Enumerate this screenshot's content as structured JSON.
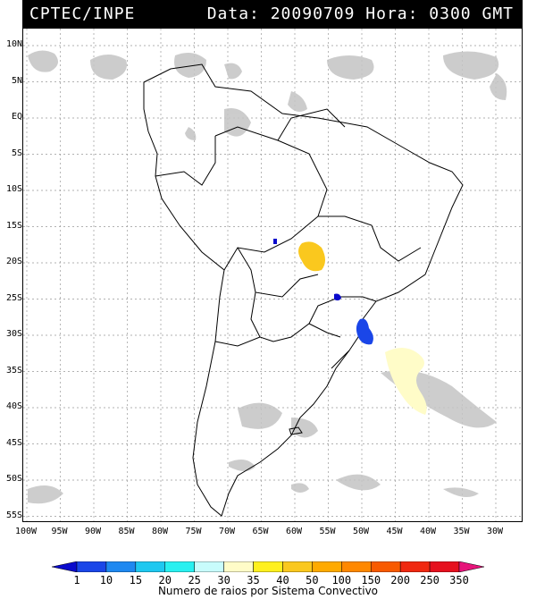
{
  "header": {
    "agency": "CPTEC/INPE",
    "date_label": "Data:",
    "date_value": "20090709",
    "hour_label": "Hora:",
    "hour_value": "0300 GMT"
  },
  "map": {
    "lat_labels": [
      "10N",
      "5N",
      "EQ",
      "5S",
      "10S",
      "15S",
      "20S",
      "25S",
      "30S",
      "35S",
      "40S",
      "45S",
      "50S",
      "55S"
    ],
    "lon_labels": [
      "100W",
      "95W",
      "90W",
      "85W",
      "80W",
      "75W",
      "70W",
      "65W",
      "60W",
      "55W",
      "50W",
      "45W",
      "40W",
      "35W",
      "30W"
    ]
  },
  "legend": {
    "colors": [
      "#0a0acc",
      "#1a46e8",
      "#1e88f0",
      "#1ec8f0",
      "#28f0f0",
      "#c8fcfc",
      "#fffcc8",
      "#fff01e",
      "#fac81e",
      "#ffaa00",
      "#ff8800",
      "#f85a00",
      "#f02810",
      "#e6101e",
      "#e6147a"
    ],
    "labels": [
      "1",
      "10",
      "15",
      "20",
      "25",
      "30",
      "35",
      "40",
      "50",
      "100",
      "150",
      "200",
      "250",
      "350"
    ],
    "title": "Numero de raios por Sistema Convectivo"
  }
}
